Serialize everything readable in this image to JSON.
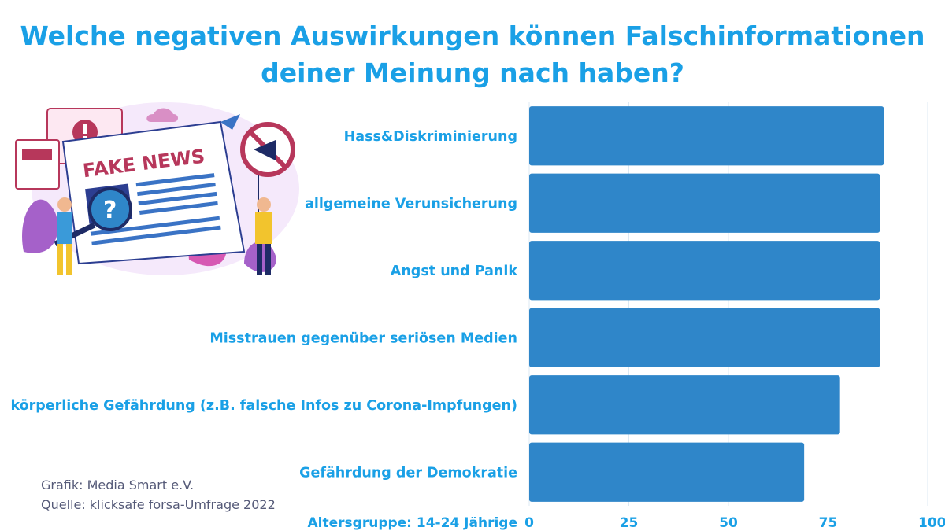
{
  "title_lines": [
    "Welche negativen Auswirkungen können Falschinformationen",
    "deiner Meinung nach haben?"
  ],
  "credit": "Grafik: Media Smart e.V.",
  "source": "Quelle: klicksafe forsa-Umfrage 2022",
  "illustration": {
    "headline": "FAKE NEWS"
  },
  "colors": {
    "bar": "#2f86c9",
    "text": "#1aa0e6",
    "grid": "#dce9f3"
  },
  "chart_data": {
    "type": "bar",
    "orientation": "horizontal",
    "categories": [
      "Hass&Diskriminierung",
      "allgemeine Verunsicherung",
      "Angst und Panik",
      "Misstrauen gegenüber seriösen Medien",
      "körperliche Gefährdung (z.B. falsche Infos zu Corona-Impfungen)",
      "Gefährdung der Demokratie"
    ],
    "values": [
      89,
      88,
      88,
      88,
      78,
      69
    ],
    "xlabel": "Altersgruppe: 14-24 Jährige",
    "xlim": [
      0,
      100
    ],
    "xticks": [
      0,
      25,
      50,
      75,
      100
    ],
    "grid": true
  }
}
